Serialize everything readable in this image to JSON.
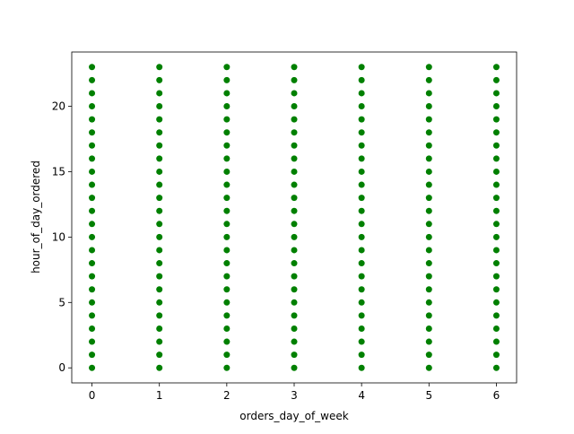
{
  "chart_data": {
    "type": "scatter",
    "x_label": "orders_day_of_week",
    "y_label": "hour_of_day_ordered",
    "color": "#008000",
    "x": [
      0,
      0,
      0,
      0,
      0,
      0,
      0,
      0,
      0,
      0,
      0,
      0,
      0,
      0,
      0,
      0,
      0,
      0,
      0,
      0,
      0,
      0,
      0,
      0,
      1,
      1,
      1,
      1,
      1,
      1,
      1,
      1,
      1,
      1,
      1,
      1,
      1,
      1,
      1,
      1,
      1,
      1,
      1,
      1,
      1,
      1,
      1,
      1,
      2,
      2,
      2,
      2,
      2,
      2,
      2,
      2,
      2,
      2,
      2,
      2,
      2,
      2,
      2,
      2,
      2,
      2,
      2,
      2,
      2,
      2,
      2,
      2,
      3,
      3,
      3,
      3,
      3,
      3,
      3,
      3,
      3,
      3,
      3,
      3,
      3,
      3,
      3,
      3,
      3,
      3,
      3,
      3,
      3,
      3,
      3,
      3,
      4,
      4,
      4,
      4,
      4,
      4,
      4,
      4,
      4,
      4,
      4,
      4,
      4,
      4,
      4,
      4,
      4,
      4,
      4,
      4,
      4,
      4,
      4,
      4,
      5,
      5,
      5,
      5,
      5,
      5,
      5,
      5,
      5,
      5,
      5,
      5,
      5,
      5,
      5,
      5,
      5,
      5,
      5,
      5,
      5,
      5,
      5,
      5,
      6,
      6,
      6,
      6,
      6,
      6,
      6,
      6,
      6,
      6,
      6,
      6,
      6,
      6,
      6,
      6,
      6,
      6,
      6,
      6,
      6,
      6,
      6,
      6
    ],
    "y": [
      0,
      1,
      2,
      3,
      4,
      5,
      6,
      7,
      8,
      9,
      10,
      11,
      12,
      13,
      14,
      15,
      16,
      17,
      18,
      19,
      20,
      21,
      22,
      23,
      0,
      1,
      2,
      3,
      4,
      5,
      6,
      7,
      8,
      9,
      10,
      11,
      12,
      13,
      14,
      15,
      16,
      17,
      18,
      19,
      20,
      21,
      22,
      23,
      0,
      1,
      2,
      3,
      4,
      5,
      6,
      7,
      8,
      9,
      10,
      11,
      12,
      13,
      14,
      15,
      16,
      17,
      18,
      19,
      20,
      21,
      22,
      23,
      0,
      1,
      2,
      3,
      4,
      5,
      6,
      7,
      8,
      9,
      10,
      11,
      12,
      13,
      14,
      15,
      16,
      17,
      18,
      19,
      20,
      21,
      22,
      23,
      0,
      1,
      2,
      3,
      4,
      5,
      6,
      7,
      8,
      9,
      10,
      11,
      12,
      13,
      14,
      15,
      16,
      17,
      18,
      19,
      20,
      21,
      22,
      23,
      0,
      1,
      2,
      3,
      4,
      5,
      6,
      7,
      8,
      9,
      10,
      11,
      12,
      13,
      14,
      15,
      16,
      17,
      18,
      19,
      20,
      21,
      22,
      23,
      0,
      1,
      2,
      3,
      4,
      5,
      6,
      7,
      8,
      9,
      10,
      11,
      12,
      13,
      14,
      15,
      16,
      17,
      18,
      19,
      20,
      21,
      22,
      23
    ],
    "xlim": [
      -0.3,
      6.3
    ],
    "xticks": [
      0,
      1,
      2,
      3,
      4,
      5,
      6
    ],
    "ylim": [
      -1.15,
      24.15
    ],
    "yticks": [
      0,
      5,
      10,
      15,
      20
    ]
  }
}
